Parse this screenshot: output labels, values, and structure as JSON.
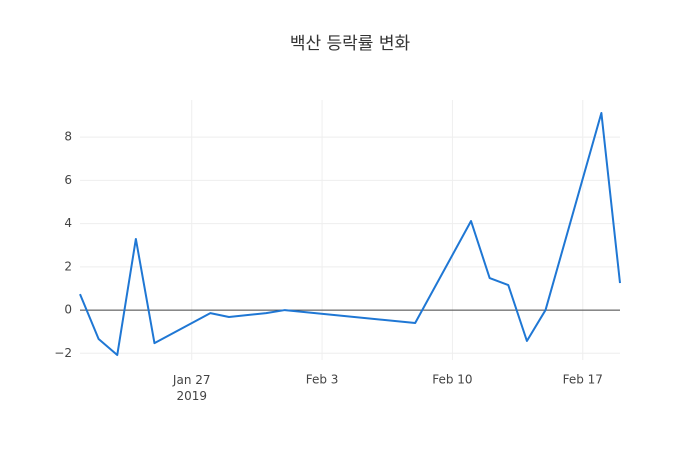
{
  "chart_data": {
    "type": "line",
    "title": "백산 등락률 변화",
    "x": [
      "2019-01-21",
      "2019-01-22",
      "2019-01-23",
      "2019-01-24",
      "2019-01-25",
      "2019-01-28",
      "2019-01-29",
      "2019-01-31",
      "2019-02-01",
      "2019-02-08",
      "2019-02-11",
      "2019-02-12",
      "2019-02-13",
      "2019-02-14",
      "2019-02-15",
      "2019-02-18",
      "2019-02-19"
    ],
    "series": [
      {
        "color": "#1f77d4",
        "values": [
          0.74,
          -1.34,
          -2.08,
          3.29,
          -1.53,
          -0.14,
          -0.32,
          -0.14,
          0,
          -0.6,
          4.12,
          1.48,
          1.16,
          -1.43,
          0,
          9.12,
          1.25
        ]
      }
    ],
    "xlim": [
      "2019-01-21",
      "2019-02-19"
    ],
    "xticks": [
      {
        "value": "2019-01-27",
        "label": "Jan 27\n2019"
      },
      {
        "value": "2019-02-03",
        "label": "Feb 3"
      },
      {
        "value": "2019-02-10",
        "label": "Feb 10"
      },
      {
        "value": "2019-02-17",
        "label": "Feb 17"
      }
    ],
    "ylim": [
      -2.31,
      9.72
    ],
    "yticks": [
      {
        "value": -2,
        "label": "−2"
      },
      0,
      2,
      4,
      6,
      8
    ],
    "grid": true,
    "zeroline": true
  }
}
